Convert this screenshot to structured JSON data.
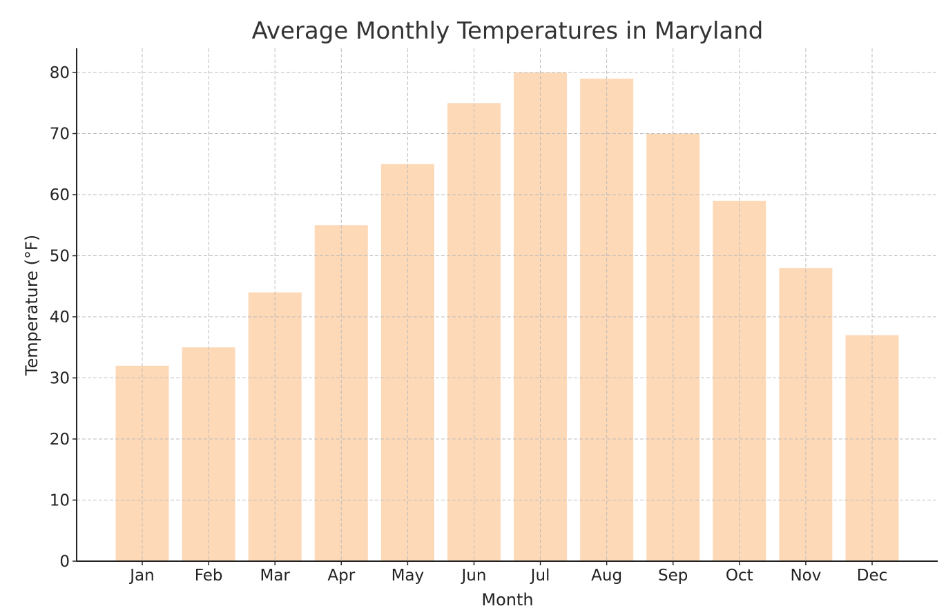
{
  "chart_data": {
    "type": "bar",
    "title": "Average Monthly Temperatures in Maryland",
    "xlabel": "Month",
    "ylabel": "Temperature (°F)",
    "categories": [
      "Jan",
      "Feb",
      "Mar",
      "Apr",
      "May",
      "Jun",
      "Jul",
      "Aug",
      "Sep",
      "Oct",
      "Nov",
      "Dec"
    ],
    "values": [
      32,
      35,
      44,
      55,
      65,
      75,
      80,
      79,
      70,
      59,
      48,
      37
    ],
    "ylim": [
      0,
      84
    ],
    "yticks": [
      0,
      10,
      20,
      30,
      40,
      50,
      60,
      70,
      80
    ],
    "grid": true,
    "bar_color": "#fdd9b7"
  }
}
